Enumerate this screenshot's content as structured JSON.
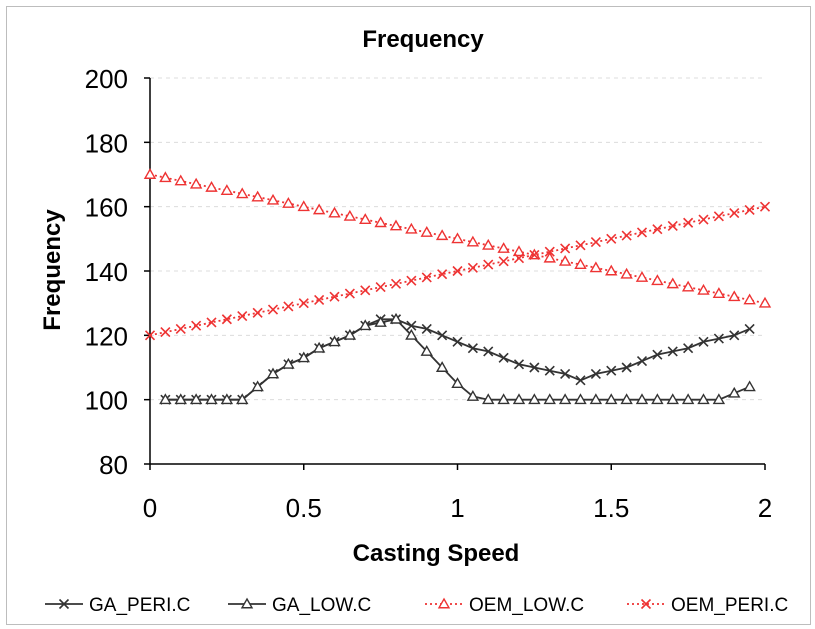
{
  "chart_data": {
    "type": "line",
    "title": "Frequency",
    "xlabel": "Casting Speed",
    "ylabel": "Frequency",
    "xlim": [
      0,
      2
    ],
    "ylim": [
      80,
      200
    ],
    "x_ticks": [
      "0",
      "0.5",
      "1",
      "1.5",
      "2"
    ],
    "y_ticks": [
      "80",
      "100",
      "120",
      "140",
      "160",
      "180",
      "200"
    ],
    "grid": "horizontal dashed",
    "legend": "bottom",
    "series": [
      {
        "name": "GA_PERI.C",
        "color": "#333333",
        "marker": "x",
        "line": "solid",
        "x": [
          0.05,
          0.1,
          0.15,
          0.2,
          0.25,
          0.3,
          0.35,
          0.4,
          0.45,
          0.5,
          0.55,
          0.6,
          0.65,
          0.7,
          0.75,
          0.8,
          0.85,
          0.9,
          0.95,
          1.0,
          1.05,
          1.1,
          1.15,
          1.2,
          1.25,
          1.3,
          1.35,
          1.4,
          1.45,
          1.5,
          1.55,
          1.6,
          1.65,
          1.7,
          1.75,
          1.8,
          1.85,
          1.9,
          1.95
        ],
        "y": [
          100,
          100,
          100,
          100,
          100,
          100,
          104,
          108,
          111,
          113,
          116,
          118,
          120,
          123,
          125,
          125,
          123,
          122,
          120,
          118,
          116,
          115,
          113,
          111,
          110,
          109,
          108,
          106,
          108,
          109,
          110,
          112,
          114,
          115,
          116,
          118,
          119,
          120,
          122
        ]
      },
      {
        "name": "GA_LOW.C",
        "color": "#333333",
        "marker": "triangle",
        "line": "solid",
        "x": [
          0.05,
          0.1,
          0.15,
          0.2,
          0.25,
          0.3,
          0.35,
          0.4,
          0.45,
          0.5,
          0.55,
          0.6,
          0.65,
          0.7,
          0.75,
          0.8,
          0.85,
          0.9,
          0.95,
          1.0,
          1.05,
          1.1,
          1.15,
          1.2,
          1.25,
          1.3,
          1.35,
          1.4,
          1.45,
          1.5,
          1.55,
          1.6,
          1.65,
          1.7,
          1.75,
          1.8,
          1.85,
          1.9,
          1.95
        ],
        "y": [
          100,
          100,
          100,
          100,
          100,
          100,
          104,
          108,
          111,
          113,
          116,
          118,
          120,
          123,
          124,
          125,
          120,
          115,
          110,
          105,
          101,
          100,
          100,
          100,
          100,
          100,
          100,
          100,
          100,
          100,
          100,
          100,
          100,
          100,
          100,
          100,
          100,
          102,
          104
        ]
      },
      {
        "name": "OEM_LOW.C",
        "color": "#ee3333",
        "marker": "triangle",
        "line": "dotted",
        "x": [
          0,
          0.05,
          0.1,
          0.15,
          0.2,
          0.25,
          0.3,
          0.35,
          0.4,
          0.45,
          0.5,
          0.55,
          0.6,
          0.65,
          0.7,
          0.75,
          0.8,
          0.85,
          0.9,
          0.95,
          1.0,
          1.05,
          1.1,
          1.15,
          1.2,
          1.25,
          1.3,
          1.35,
          1.4,
          1.45,
          1.5,
          1.55,
          1.6,
          1.65,
          1.7,
          1.75,
          1.8,
          1.85,
          1.9,
          1.95,
          2.0
        ],
        "y": [
          170,
          169,
          168,
          167,
          166,
          165,
          164,
          163,
          162,
          161,
          160,
          159,
          158,
          157,
          156,
          155,
          154,
          153,
          152,
          151,
          150,
          149,
          148,
          147,
          146,
          145,
          144,
          143,
          142,
          141,
          140,
          139,
          138,
          137,
          136,
          135,
          134,
          133,
          132,
          131,
          130
        ]
      },
      {
        "name": "OEM_PERI.C",
        "color": "#ee3333",
        "marker": "x",
        "line": "dotted",
        "x": [
          0,
          0.05,
          0.1,
          0.15,
          0.2,
          0.25,
          0.3,
          0.35,
          0.4,
          0.45,
          0.5,
          0.55,
          0.6,
          0.65,
          0.7,
          0.75,
          0.8,
          0.85,
          0.9,
          0.95,
          1.0,
          1.05,
          1.1,
          1.15,
          1.2,
          1.25,
          1.3,
          1.35,
          1.4,
          1.45,
          1.5,
          1.55,
          1.6,
          1.65,
          1.7,
          1.75,
          1.8,
          1.85,
          1.9,
          1.95,
          2.0
        ],
        "y": [
          120,
          121,
          122,
          123,
          124,
          125,
          126,
          127,
          128,
          129,
          130,
          131,
          132,
          133,
          134,
          135,
          136,
          137,
          138,
          139,
          140,
          141,
          142,
          143,
          144,
          145,
          146,
          147,
          148,
          149,
          150,
          151,
          152,
          153,
          154,
          155,
          156,
          157,
          158,
          159,
          160
        ]
      }
    ]
  }
}
